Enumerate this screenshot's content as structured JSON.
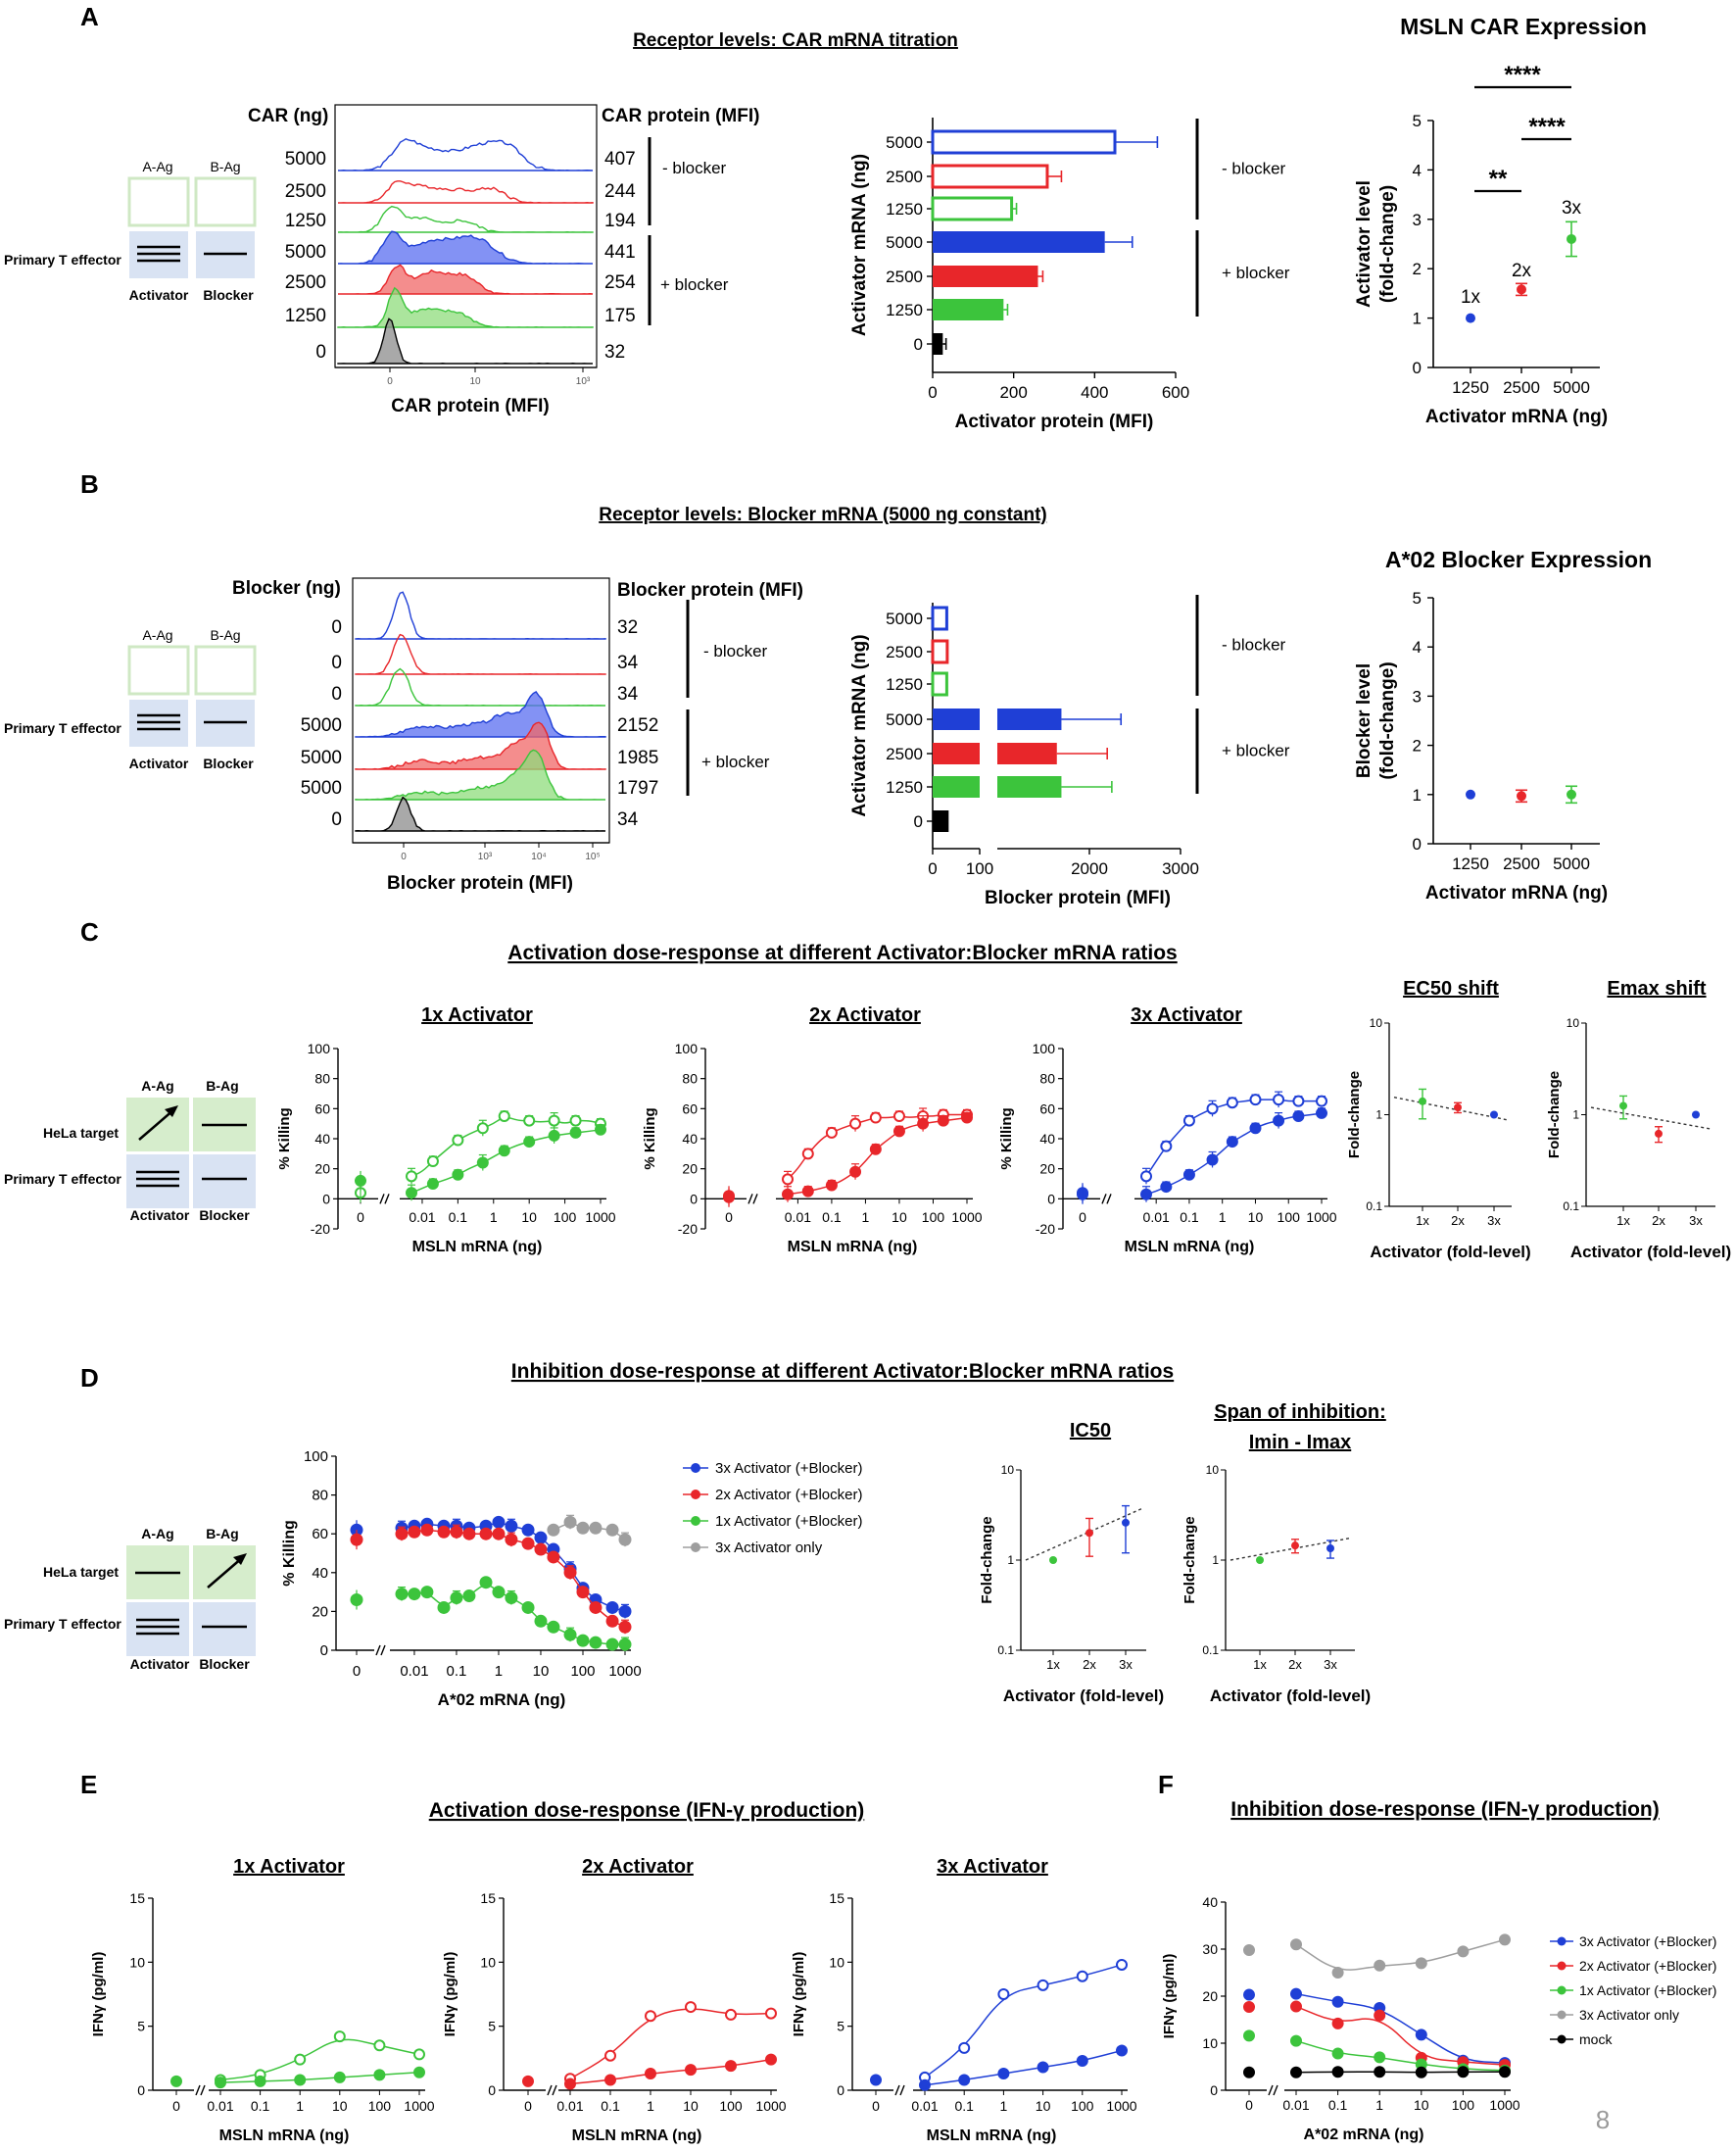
{
  "page_number": "8",
  "diagram": {
    "activator": "Activator",
    "blocker": "Blocker",
    "a_ag": "A-Ag",
    "b_ag": "B-Ag",
    "effector": "Primary T effector",
    "target": "HeLa target"
  },
  "panel_a": {
    "letter": "A",
    "title": "Receptor levels: CAR mRNA titration",
    "histogram": {
      "header_left": "CAR (ng)",
      "header_right": "CAR protein (MFI)",
      "row_amounts": [
        "5000",
        "2500",
        "1250",
        "5000",
        "2500",
        "1250",
        "0"
      ],
      "row_mfi": [
        "407",
        "244",
        "194",
        "441",
        "254",
        "175",
        "32"
      ],
      "group_minus": "- blocker",
      "group_plus": "+ blocker",
      "xlabel": "CAR protein (MFI)",
      "tick_labels": [
        "0",
        "10",
        "10³"
      ]
    },
    "mfi_bar": {
      "ylabel": "Activator mRNA (ng)",
      "xlabel": "Activator protein (MFI)",
      "group_minus": "- blocker",
      "group_plus": "+ blocker"
    },
    "right_title": "MSLN CAR Expression",
    "fold_chart": {
      "ylabel": "Activator level (fold-change)",
      "xlabel": "Activator mRNA (ng)",
      "point_labels": [
        "1x",
        "2x",
        "3x"
      ],
      "sig_labels": [
        "****",
        "****",
        "**"
      ]
    }
  },
  "panel_b": {
    "letter": "B",
    "title": "Receptor levels: Blocker mRNA (5000 ng constant)",
    "histogram": {
      "header_left": "Blocker (ng)",
      "header_right": "Blocker protein (MFI)",
      "row_amounts": [
        "0",
        "0",
        "0",
        "5000",
        "5000",
        "5000",
        "0"
      ],
      "row_mfi": [
        "32",
        "34",
        "34",
        "2152",
        "1985",
        "1797",
        "34"
      ],
      "group_minus": "- blocker",
      "group_plus": "+ blocker",
      "xlabel": "Blocker protein (MFI)",
      "tick_labels": [
        "0",
        "10³",
        "10⁴",
        "10⁵"
      ]
    },
    "mfi_bar": {
      "ylabel": "Activator mRNA (ng)",
      "xlabel": "Blocker protein (MFI)",
      "group_minus": "- blocker",
      "group_plus": "+ blocker"
    },
    "right_title": "A*02 Blocker Expression",
    "fold_chart": {
      "ylabel": "Blocker level (fold-change)",
      "xlabel": "Activator mRNA (ng)"
    }
  },
  "panel_c": {
    "letter": "C",
    "title": "Activation dose-response at different Activator:Blocker mRNA ratios",
    "sub_titles": [
      "1x Activator",
      "2x Activator",
      "3x Activator",
      "EC50 shift",
      "Emax shift"
    ],
    "ylabel": "% Killing",
    "xlabel": "MSLN mRNA (ng)",
    "fold_ylabel": "Fold-change",
    "fold_xlabel": "Activator (fold-level)"
  },
  "panel_d": {
    "letter": "D",
    "title": "Inhibition dose-response at different Activator:Blocker mRNA ratios",
    "ylabel": "% Killing",
    "xlabel": "A*02 mRNA (ng)",
    "legend": [
      "3x Activator (+Blocker)",
      "2x Activator (+Blocker)",
      "1x Activator (+Blocker)",
      "3x Activator only"
    ],
    "ic50_title": "IC50",
    "span_title_1": "Span of inhibition:",
    "span_title_2": "Imin - Imax",
    "fold_ylabel": "Fold-change",
    "fold_xlabel": "Activator (fold-level)"
  },
  "panel_e": {
    "letter": "E",
    "title": "Activation dose-response (IFN-γ production)",
    "sub_titles": [
      "1x Activator",
      "2x Activator",
      "3x Activator"
    ],
    "ylabel": "IFNγ (pg/ml)",
    "xlabel": "MSLN mRNA (ng)"
  },
  "panel_f": {
    "letter": "F",
    "title": "Inhibition dose-response (IFN-γ production)",
    "ylabel": "IFNγ (pg/ml)",
    "xlabel": "A*02 mRNA (ng)",
    "legend": [
      "3x Activator  (+Blocker)",
      "2x Activator  (+Blocker)",
      "1x Activator  (+Blocker)",
      "3x Activator only",
      "mock"
    ]
  },
  "chart_data": [
    {
      "id": "A_bar",
      "type": "bar",
      "orientation": "horizontal",
      "categories": [
        "5000",
        "2500",
        "1250",
        "5000",
        "2500",
        "1250",
        "0"
      ],
      "groups": [
        "- blocker",
        "- blocker",
        "- blocker",
        "+ blocker",
        "+ blocker",
        "+ blocker",
        ""
      ],
      "values": [
        450,
        283,
        195,
        425,
        260,
        175,
        25
      ],
      "errors": [
        105,
        35,
        12,
        68,
        12,
        10,
        8
      ],
      "filled": [
        false,
        false,
        false,
        true,
        true,
        true,
        true
      ],
      "colors": [
        "#1f3fd6",
        "#e8262a",
        "#3cc43c",
        "#1f3fd6",
        "#e8262a",
        "#3cc43c",
        "#000000"
      ],
      "xlabel": "Activator protein (MFI)",
      "ylabel": "Activator mRNA (ng)",
      "xlim": [
        0,
        600
      ],
      "xticks": [
        0,
        200,
        400,
        600
      ]
    },
    {
      "id": "A_fold",
      "type": "scatter",
      "title": "MSLN CAR Expression",
      "categories": [
        "1250",
        "2500",
        "5000"
      ],
      "values": [
        1.0,
        1.58,
        2.6
      ],
      "errors": [
        0,
        0.12,
        0.35
      ],
      "ylim": [
        0,
        5
      ],
      "yticks": [
        0,
        1,
        2,
        3,
        4,
        5
      ],
      "xlabel": "Activator mRNA (ng)",
      "ylabel": "Activator level (fold-change)"
    },
    {
      "id": "B_bar",
      "type": "bar",
      "orientation": "horizontal",
      "categories": [
        "5000",
        "2500",
        "1250",
        "5000",
        "2500",
        "1250",
        "0"
      ],
      "values": [
        30,
        31,
        30,
        1700,
        1650,
        1700,
        34
      ],
      "errors": [
        0,
        0,
        0,
        650,
        550,
        550,
        3
      ],
      "filled": [
        false,
        false,
        false,
        true,
        true,
        true,
        true
      ],
      "colors": [
        "#1f3fd6",
        "#e8262a",
        "#3cc43c",
        "#1f3fd6",
        "#e8262a",
        "#3cc43c",
        "#000000"
      ],
      "xlabel": "Blocker protein (MFI)",
      "ylabel": "Activator mRNA (ng)",
      "xticks": [
        0,
        100,
        2000,
        3000
      ]
    },
    {
      "id": "B_fold",
      "type": "scatter",
      "title": "A*02 Blocker Expression",
      "categories": [
        "1250",
        "2500",
        "5000"
      ],
      "values": [
        1.0,
        0.97,
        1.0
      ],
      "errors": [
        0,
        0.12,
        0.17
      ],
      "ylim": [
        0,
        5
      ],
      "yticks": [
        0,
        1,
        2,
        3,
        4,
        5
      ],
      "xlabel": "Activator mRNA (ng)",
      "ylabel": "Blocker level (fold-change)"
    },
    {
      "id": "C1",
      "type": "line",
      "title": "1x Activator",
      "color": "#3cc43c",
      "x": [
        0.005,
        0.01,
        0.02,
        0.05,
        0.1,
        0.2,
        0.5,
        1,
        2,
        5,
        10,
        20,
        50,
        100,
        200,
        500,
        1000
      ],
      "series": [
        {
          "name": "- Blocker",
          "open": true,
          "zero": [
            4
          ],
          "values": [
            15,
            18,
            25,
            33,
            39,
            43,
            47,
            50,
            55,
            52,
            52,
            51,
            52,
            50,
            52,
            52,
            50
          ]
        },
        {
          "name": "+ Blocker",
          "open": false,
          "zero": 12,
          "values": [
            4,
            7,
            10,
            13,
            16,
            20,
            24,
            28,
            32,
            36,
            38,
            40,
            42,
            43,
            44,
            45,
            46
          ]
        }
      ],
      "ylim": [
        -20,
        100
      ],
      "xlabel": "MSLN mRNA (ng)",
      "ylabel": "% Killing"
    },
    {
      "id": "C2",
      "type": "line",
      "title": "2x Activator",
      "color": "#e8262a",
      "x": [
        0.005,
        0.01,
        0.02,
        0.05,
        0.1,
        0.2,
        0.5,
        1,
        2,
        5,
        10,
        20,
        50,
        100,
        200,
        500,
        1000
      ],
      "series": [
        {
          "name": "- Blocker",
          "open": true,
          "zero": 2,
          "values": [
            13,
            20,
            30,
            40,
            44,
            47,
            50,
            52,
            54,
            54,
            55,
            54,
            55,
            55,
            56,
            56,
            56
          ]
        },
        {
          "name": "+ Blocker",
          "open": false,
          "zero": 1,
          "values": [
            3,
            4,
            5,
            7,
            9,
            12,
            18,
            25,
            33,
            40,
            45,
            48,
            50,
            51,
            52,
            53,
            54
          ]
        }
      ],
      "ylim": [
        -20,
        100
      ],
      "xlabel": "MSLN mRNA (ng)",
      "ylabel": "% Killing"
    },
    {
      "id": "C3",
      "type": "line",
      "title": "3x Activator",
      "color": "#1f3fd6",
      "x": [
        0.005,
        0.01,
        0.02,
        0.05,
        0.1,
        0.2,
        0.5,
        1,
        2,
        5,
        10,
        20,
        50,
        100,
        200,
        500,
        1000
      ],
      "series": [
        {
          "name": "- Blocker",
          "open": true,
          "zero": 3,
          "values": [
            15,
            25,
            35,
            45,
            52,
            56,
            60,
            62,
            64,
            65,
            66,
            66,
            66,
            65,
            65,
            65,
            65
          ]
        },
        {
          "name": "+ Blocker",
          "open": false,
          "zero": 4,
          "values": [
            3,
            5,
            8,
            12,
            16,
            20,
            26,
            32,
            38,
            43,
            47,
            50,
            52,
            54,
            55,
            56,
            57
          ]
        }
      ],
      "ylim": [
        -20,
        100
      ],
      "xlabel": "MSLN mRNA (ng)",
      "ylabel": "% Killing"
    },
    {
      "id": "C_ec50",
      "type": "scatter",
      "title": "EC50 shift",
      "log_y": true,
      "ylim": [
        0.1,
        10
      ],
      "categories": [
        "1x",
        "2x",
        "3x"
      ],
      "values": [
        1.4,
        1.2,
        1.0
      ],
      "errors": [
        0.5,
        0.15,
        0
      ],
      "colors": [
        "#3cc43c",
        "#e8262a",
        "#1f3fd6"
      ],
      "trend": [
        1.55,
        0.88
      ],
      "xlabel": "Activator (fold-level)",
      "ylabel": "Fold-change"
    },
    {
      "id": "C_emax",
      "type": "scatter",
      "title": "Emax shift",
      "log_y": true,
      "ylim": [
        0.1,
        10
      ],
      "categories": [
        "1x",
        "2x",
        "3x"
      ],
      "values": [
        1.25,
        0.62,
        1.0
      ],
      "errors": [
        0.35,
        0.12,
        0
      ],
      "colors": [
        "#3cc43c",
        "#e8262a",
        "#1f3fd6"
      ],
      "trend": [
        1.2,
        0.7
      ],
      "xlabel": "Activator (fold-level)",
      "ylabel": "Fold-change"
    },
    {
      "id": "D",
      "type": "line",
      "x": [
        0.005,
        0.01,
        0.02,
        0.05,
        0.1,
        0.2,
        0.5,
        1,
        2,
        5,
        10,
        20,
        50,
        100,
        200,
        500,
        1000
      ],
      "series": [
        {
          "name": "3x Activator (+Blocker)",
          "color": "#1f3fd6",
          "zero": 62,
          "values": [
            63,
            64,
            65,
            64,
            64,
            63,
            64,
            66,
            64,
            62,
            58,
            52,
            42,
            32,
            26,
            22,
            20
          ]
        },
        {
          "name": "2x Activator (+Blocker)",
          "color": "#e8262a",
          "zero": 57,
          "values": [
            60,
            61,
            62,
            61,
            61,
            60,
            60,
            60,
            57,
            55,
            52,
            48,
            40,
            30,
            22,
            15,
            12
          ]
        },
        {
          "name": "1x Activator (+Blocker)",
          "color": "#3cc43c",
          "zero": 26,
          "values": [
            29,
            29,
            30,
            22,
            27,
            28,
            35,
            30,
            27,
            22,
            15,
            12,
            8,
            5,
            4,
            3,
            3
          ]
        },
        {
          "name": "3x Activator only",
          "color": "#9e9e9e",
          "zero": null,
          "values": [
            null,
            null,
            null,
            null,
            null,
            null,
            null,
            null,
            null,
            null,
            null,
            62,
            66,
            63,
            63,
            62,
            57
          ]
        }
      ],
      "ylim": [
        0,
        100
      ],
      "yticks": [
        0,
        20,
        40,
        60,
        80,
        100
      ],
      "xlabel": "A*02 mRNA (ng)",
      "ylabel": "% Killing"
    },
    {
      "id": "D_ic50",
      "type": "scatter",
      "title": "IC50",
      "log_y": true,
      "ylim": [
        0.1,
        10
      ],
      "categories": [
        "1x",
        "2x",
        "3x"
      ],
      "values": [
        1.0,
        2.0,
        2.6
      ],
      "errors": [
        0,
        0.9,
        1.4
      ],
      "colors": [
        "#3cc43c",
        "#e8262a",
        "#1f3fd6"
      ],
      "trend": [
        1.0,
        3.7
      ],
      "xlabel": "Activator (fold-level)",
      "ylabel": "Fold-change"
    },
    {
      "id": "D_span",
      "type": "scatter",
      "title": "Span of inhibition: Imin - Imax",
      "log_y": true,
      "ylim": [
        0.1,
        10
      ],
      "categories": [
        "1x",
        "2x",
        "3x"
      ],
      "values": [
        1.0,
        1.45,
        1.35
      ],
      "errors": [
        0,
        0.25,
        0.3
      ],
      "colors": [
        "#3cc43c",
        "#e8262a",
        "#1f3fd6"
      ],
      "trend": [
        1.0,
        1.75
      ],
      "xlabel": "Activator (fold-level)",
      "ylabel": "Fold-change"
    },
    {
      "id": "E1",
      "type": "line",
      "title": "1x Activator",
      "color": "#3cc43c",
      "x": [
        0.01,
        0.1,
        1,
        10,
        100,
        1000
      ],
      "series": [
        {
          "name": "- Blocker",
          "open": true,
          "values": [
            0.8,
            1.2,
            2.4,
            4.2,
            3.5,
            2.8
          ]
        },
        {
          "name": "+ Blocker",
          "open": false,
          "zero": 0.7,
          "values": [
            0.6,
            0.7,
            0.8,
            1.0,
            1.2,
            1.4
          ]
        }
      ],
      "ylim": [
        0,
        15
      ],
      "yticks": [
        0,
        5,
        10,
        15
      ],
      "xlabel": "MSLN mRNA (ng)",
      "ylabel": "IFNγ (pg/ml)"
    },
    {
      "id": "E2",
      "type": "line",
      "title": "2x Activator",
      "color": "#e8262a",
      "x": [
        0.01,
        0.1,
        1,
        10,
        100,
        1000
      ],
      "series": [
        {
          "name": "- Blocker",
          "open": true,
          "values": [
            0.9,
            2.7,
            5.8,
            6.5,
            5.9,
            6.0
          ]
        },
        {
          "name": "+ Blocker",
          "open": false,
          "zero": 0.7,
          "values": [
            0.5,
            0.8,
            1.3,
            1.6,
            1.9,
            2.4
          ]
        }
      ],
      "ylim": [
        0,
        15
      ],
      "yticks": [
        0,
        5,
        10,
        15
      ],
      "xlabel": "MSLN mRNA (ng)",
      "ylabel": "IFNγ (pg/ml)"
    },
    {
      "id": "E3",
      "type": "line",
      "title": "3x Activator",
      "color": "#1f3fd6",
      "x": [
        0.01,
        0.1,
        1,
        10,
        100,
        1000
      ],
      "series": [
        {
          "name": "- Blocker",
          "open": true,
          "values": [
            1.0,
            3.3,
            7.5,
            8.2,
            8.9,
            9.8
          ]
        },
        {
          "name": "+ Blocker",
          "open": false,
          "zero": 0.8,
          "values": [
            0.4,
            0.8,
            1.3,
            1.8,
            2.3,
            3.1
          ]
        }
      ],
      "ylim": [
        0,
        15
      ],
      "yticks": [
        0,
        5,
        10,
        15
      ],
      "xlabel": "MSLN mRNA (ng)",
      "ylabel": "IFNγ (pg/ml)"
    },
    {
      "id": "F",
      "type": "line",
      "x": [
        0.01,
        0.1,
        1,
        10,
        100,
        1000
      ],
      "series": [
        {
          "name": "3x Activator  (+Blocker)",
          "color": "#1f3fd6",
          "zero": 20.3,
          "values": [
            20.5,
            18.8,
            17.5,
            11.8,
            6.3,
            5.8
          ]
        },
        {
          "name": "2x Activator  (+Blocker)",
          "color": "#e8262a",
          "zero": 17.7,
          "values": [
            17.8,
            14.2,
            15.9,
            6.9,
            6.0,
            5.4
          ]
        },
        {
          "name": "1x Activator  (+Blocker)",
          "color": "#3cc43c",
          "zero": 11.6,
          "values": [
            10.5,
            7.8,
            7.0,
            5.5,
            4.5,
            4.2
          ]
        },
        {
          "name": "3x Activator only",
          "color": "#9e9e9e",
          "zero": 29.8,
          "values": [
            31.0,
            25.0,
            26.5,
            27.0,
            29.5,
            32.0
          ]
        },
        {
          "name": "mock",
          "color": "#000000",
          "zero": 3.8,
          "values": [
            3.8,
            3.9,
            3.9,
            3.8,
            3.9,
            3.9
          ]
        }
      ],
      "ylim": [
        0,
        40
      ],
      "yticks": [
        0,
        10,
        20,
        30,
        40
      ],
      "xlabel": "A*02 mRNA (ng)",
      "ylabel": "IFNγ (pg/ml)"
    }
  ]
}
